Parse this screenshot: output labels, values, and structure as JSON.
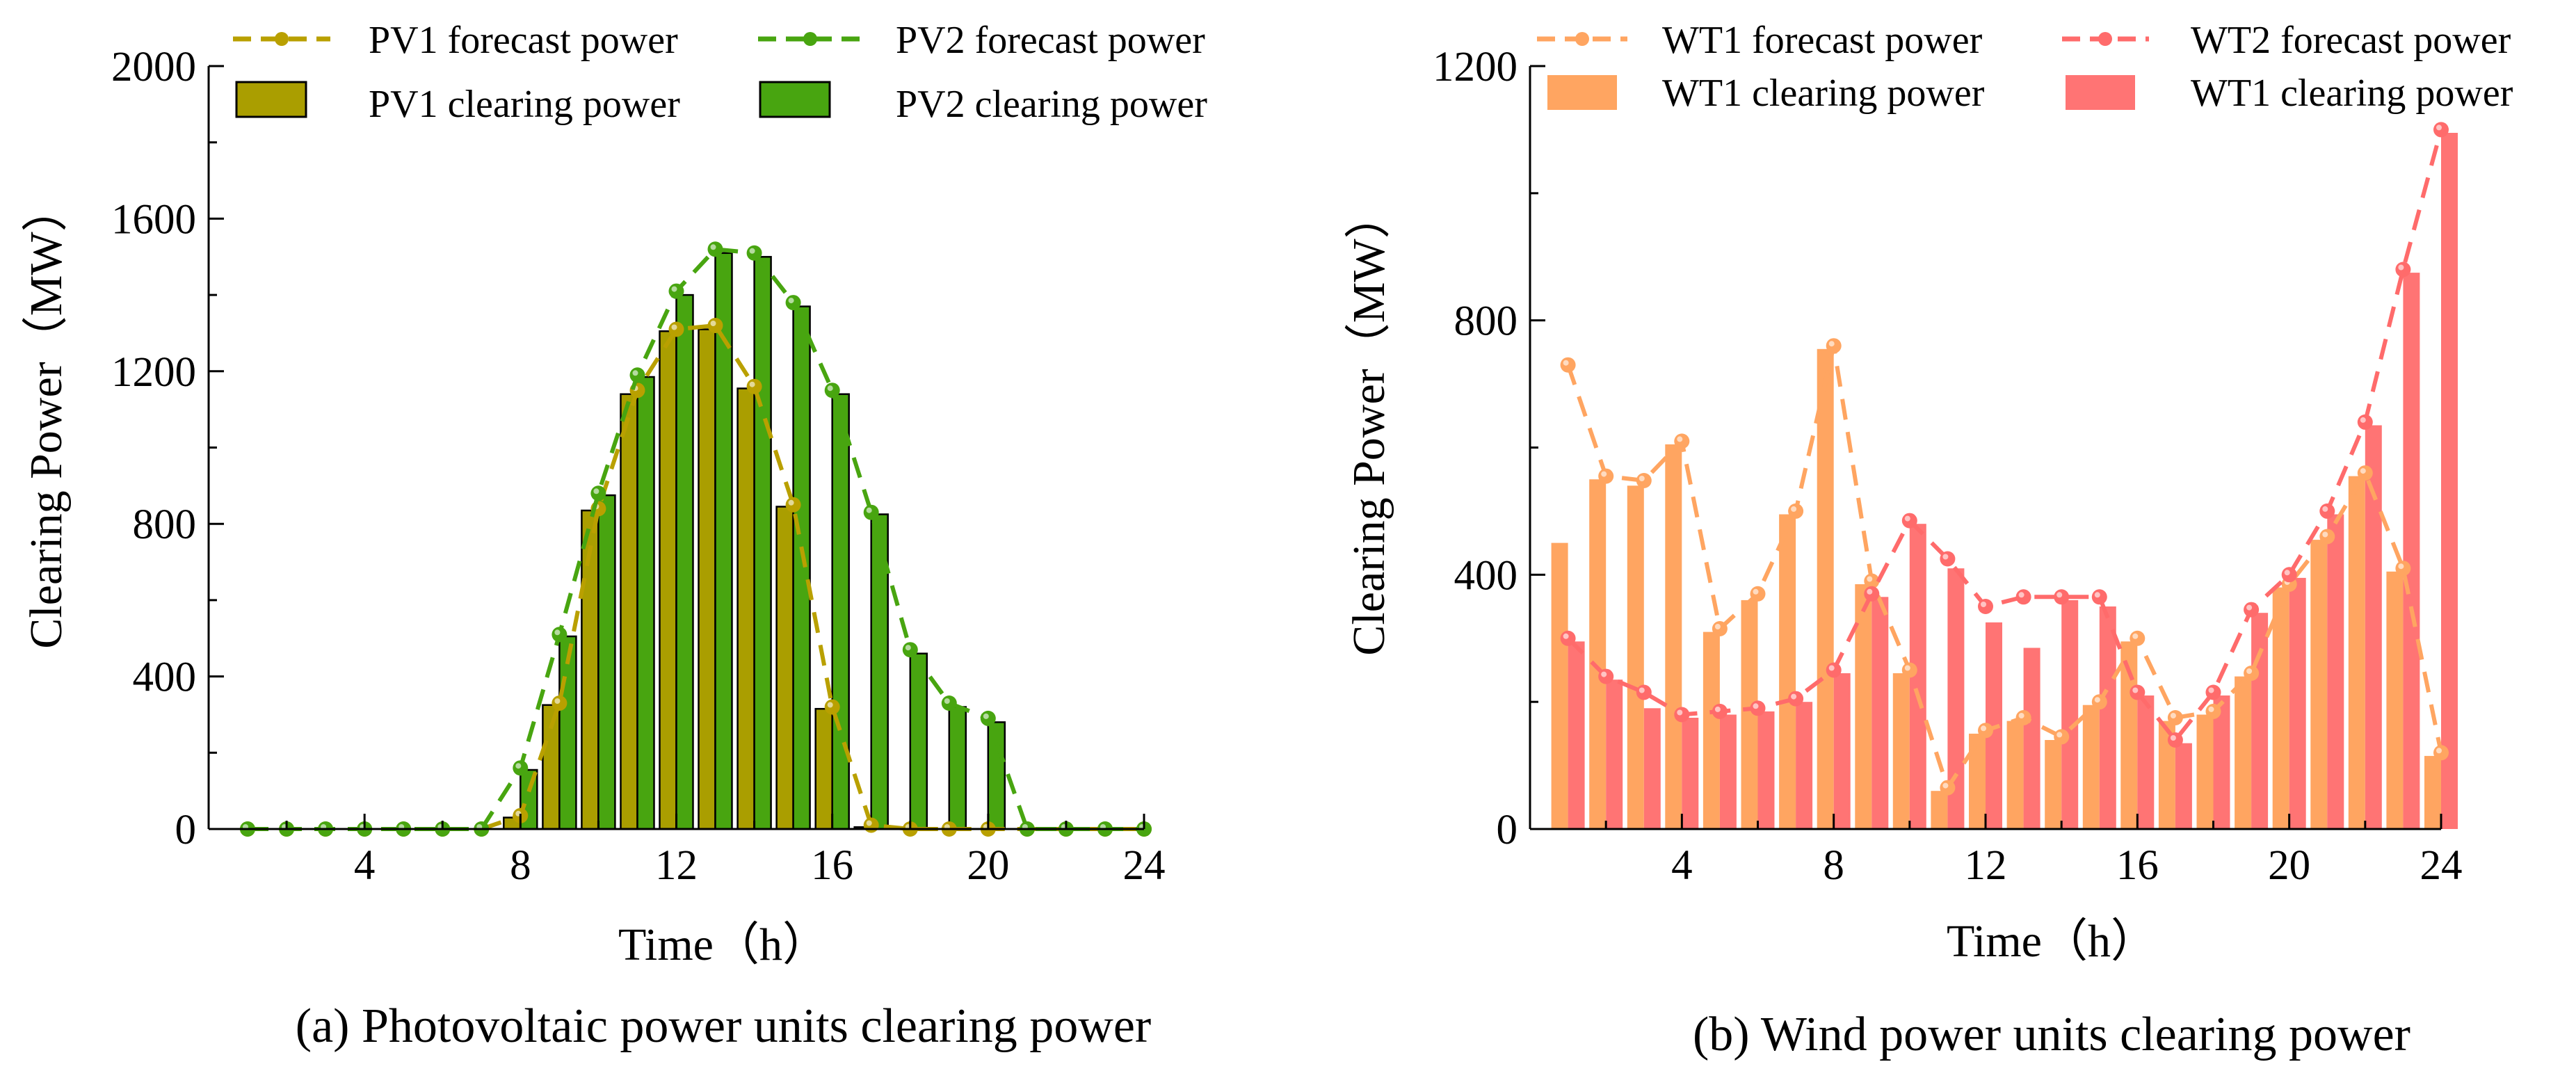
{
  "chart_data": [
    {
      "type": "bar+line",
      "caption": "(a) Photovoltaic power units clearing power",
      "xlabel": "Time（h）",
      "ylabel": "Clearing Power（MW）",
      "xlim": [
        0,
        24
      ],
      "ylim": [
        0,
        2000
      ],
      "xticks": [
        "4",
        "8",
        "12",
        "16",
        "20",
        "24"
      ],
      "yticks": [
        "0",
        "400",
        "800",
        "1200",
        "1600",
        "2000"
      ],
      "x": [
        1,
        2,
        3,
        4,
        5,
        6,
        7,
        8,
        9,
        10,
        11,
        12,
        13,
        14,
        15,
        16,
        17,
        18,
        19,
        20,
        21,
        22,
        23,
        24
      ],
      "legend": [
        {
          "label": "PV1 forecast power",
          "kind": "line"
        },
        {
          "label": "PV2 forecast power",
          "kind": "line"
        },
        {
          "label": "PV1 clearing power",
          "kind": "bar"
        },
        {
          "label": "PV2 clearing power",
          "kind": "bar"
        }
      ],
      "series": [
        {
          "name": "PV1 forecast power",
          "kind": "line",
          "color": "#b9a000",
          "values": [
            0,
            0,
            0,
            0,
            0,
            0,
            0,
            35,
            330,
            840,
            1150,
            1310,
            1320,
            1160,
            850,
            320,
            10,
            0,
            0,
            0,
            0,
            0,
            0,
            0
          ]
        },
        {
          "name": "PV2 forecast power",
          "kind": "line",
          "color": "#48a510",
          "values": [
            0,
            0,
            0,
            0,
            0,
            0,
            0,
            160,
            510,
            880,
            1190,
            1410,
            1520,
            1510,
            1380,
            1150,
            830,
            470,
            330,
            290,
            0,
            0,
            0,
            0
          ]
        },
        {
          "name": "PV1 clearing power",
          "kind": "bar",
          "color": "#aa9e00",
          "values": [
            0,
            0,
            0,
            0,
            0,
            0,
            0,
            30,
            325,
            835,
            1140,
            1305,
            1310,
            1155,
            845,
            315,
            5,
            0,
            0,
            0,
            0,
            0,
            0,
            0
          ]
        },
        {
          "name": "PV2 clearing power",
          "kind": "bar",
          "color": "#48a510",
          "values": [
            0,
            0,
            0,
            0,
            0,
            0,
            0,
            155,
            505,
            875,
            1185,
            1400,
            1510,
            1500,
            1370,
            1140,
            825,
            460,
            320,
            280,
            0,
            0,
            0,
            0
          ]
        }
      ]
    },
    {
      "type": "bar+line",
      "caption": "(b) Wind power units clearing power",
      "xlabel": "Time（h）",
      "ylabel": "Clearing Power（MW）",
      "xlim": [
        0,
        24
      ],
      "ylim": [
        0,
        1200
      ],
      "xticks": [
        "4",
        "8",
        "12",
        "16",
        "20",
        "24"
      ],
      "yticks": [
        "0",
        "400",
        "800",
        "1200"
      ],
      "x": [
        1,
        2,
        3,
        4,
        5,
        6,
        7,
        8,
        9,
        10,
        11,
        12,
        13,
        14,
        15,
        16,
        17,
        18,
        19,
        20,
        21,
        22,
        23,
        24
      ],
      "legend": [
        {
          "label": "WT1 forecast power",
          "kind": "line"
        },
        {
          "label": "WT2 forecast power",
          "kind": "line"
        },
        {
          "label": "WT1 clearing power",
          "kind": "bar"
        },
        {
          "label": "WT1 clearing power",
          "kind": "bar"
        }
      ],
      "series": [
        {
          "name": "WT1 forecast power",
          "kind": "line",
          "color": "#ffa561",
          "values": [
            730,
            555,
            548,
            610,
            315,
            370,
            500,
            760,
            390,
            250,
            65,
            155,
            175,
            145,
            200,
            300,
            175,
            185,
            245,
            385,
            460,
            560,
            410,
            120
          ]
        },
        {
          "name": "WT2 forecast power",
          "kind": "line",
          "color": "#ff6b6b",
          "values": [
            300,
            240,
            215,
            180,
            185,
            190,
            205,
            250,
            370,
            485,
            425,
            350,
            365,
            365,
            365,
            215,
            140,
            215,
            345,
            400,
            500,
            640,
            880,
            1100
          ]
        },
        {
          "name": "WT1 clearing power",
          "kind": "bar",
          "color": "#ffa561",
          "values": [
            450,
            550,
            540,
            605,
            310,
            360,
            495,
            755,
            385,
            245,
            60,
            150,
            170,
            140,
            195,
            295,
            170,
            180,
            240,
            380,
            455,
            555,
            405,
            115
          ]
        },
        {
          "name": "WT1 clearing power",
          "kind": "bar",
          "color": "#ff7474",
          "values": [
            295,
            235,
            190,
            175,
            180,
            185,
            200,
            245,
            365,
            480,
            410,
            325,
            285,
            360,
            350,
            210,
            135,
            210,
            340,
            395,
            495,
            635,
            875,
            1095
          ]
        }
      ]
    }
  ]
}
